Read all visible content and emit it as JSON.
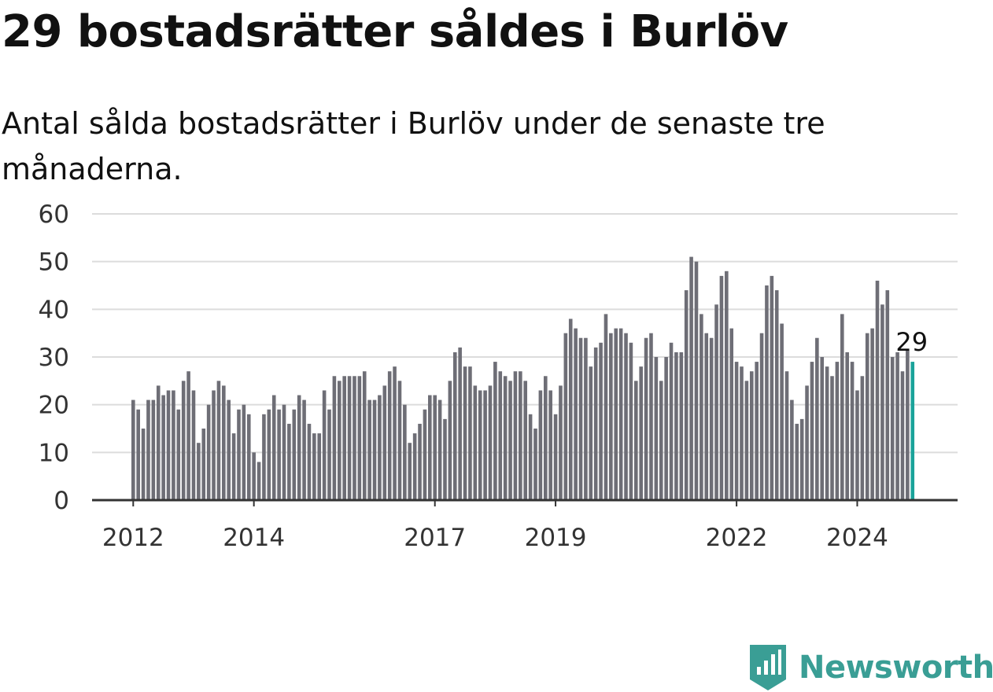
{
  "title": "29 bostadsrätter såldes i Burlöv",
  "subtitle": "Antal sålda bostadsrätter i Burlöv under de senaste tre månaderna.",
  "brand": {
    "name": "Newsworthy",
    "color": "#3a9e95",
    "icon": "newsworthy-chart-icon"
  },
  "chart_data": {
    "type": "bar",
    "title": "29 bostadsrätter såldes i Burlöv",
    "subtitle": "Antal sålda bostadsrätter i Burlöv under de senaste tre månaderna.",
    "xlabel": "",
    "ylabel": "",
    "ylim": [
      0,
      60
    ],
    "yticks": [
      0,
      10,
      20,
      30,
      40,
      50,
      60
    ],
    "xticks": [
      "2012",
      "2014",
      "2017",
      "2019",
      "2022",
      "2024"
    ],
    "grid": true,
    "bar_color": "#6e6e76",
    "highlight_color": "#1aa39a",
    "highlight_label": "29",
    "start_month": "2012-01",
    "values": [
      21,
      19,
      15,
      21,
      21,
      24,
      22,
      23,
      23,
      19,
      25,
      27,
      23,
      12,
      15,
      20,
      23,
      25,
      24,
      21,
      14,
      19,
      20,
      18,
      10,
      8,
      18,
      19,
      22,
      19,
      20,
      16,
      19,
      22,
      21,
      16,
      14,
      14,
      23,
      19,
      26,
      25,
      26,
      26,
      26,
      26,
      27,
      21,
      21,
      22,
      24,
      27,
      28,
      25,
      20,
      12,
      14,
      16,
      19,
      22,
      22,
      21,
      17,
      25,
      31,
      32,
      28,
      28,
      24,
      23,
      23,
      24,
      29,
      27,
      26,
      25,
      27,
      27,
      25,
      18,
      15,
      23,
      26,
      23,
      18,
      24,
      35,
      38,
      36,
      34,
      34,
      28,
      32,
      33,
      39,
      35,
      36,
      36,
      35,
      33,
      25,
      28,
      34,
      35,
      30,
      25,
      30,
      33,
      31,
      31,
      44,
      51,
      50,
      39,
      35,
      34,
      41,
      47,
      48,
      36,
      29,
      28,
      25,
      27,
      29,
      35,
      45,
      47,
      44,
      37,
      27,
      21,
      16,
      17,
      24,
      29,
      34,
      30,
      28,
      26,
      29,
      39,
      31,
      29,
      23,
      26,
      35,
      36,
      46,
      41,
      44,
      30,
      31,
      27,
      31.5,
      29
    ]
  }
}
